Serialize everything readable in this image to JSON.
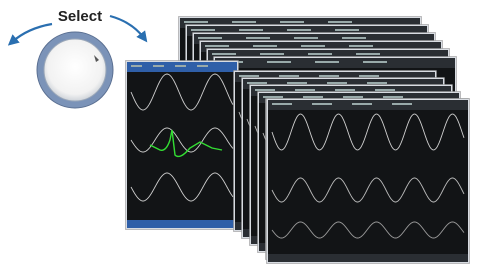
{
  "label": "Select"
}
